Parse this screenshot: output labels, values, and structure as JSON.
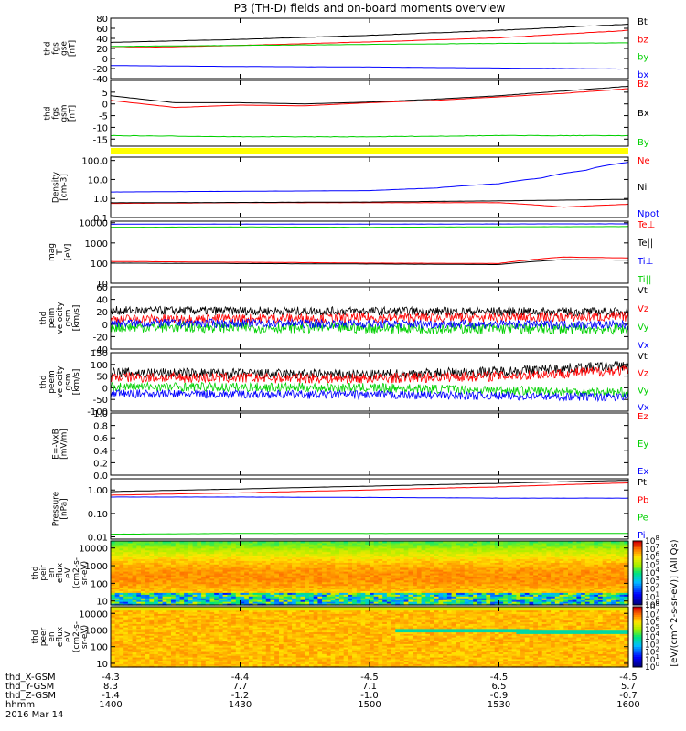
{
  "title": "P3 (TH-D) fields and on-board moments overview",
  "date_label": "2016 Mar 14",
  "chart_data": [
    {
      "id": "fgs_gse",
      "type": "line",
      "ylabel": [
        "thd",
        "fgs",
        "gse",
        "[nT]"
      ],
      "ylim": [
        -40,
        80
      ],
      "yticks": [
        80,
        60,
        40,
        20,
        0,
        -20,
        -40
      ],
      "series": [
        {
          "name": "Bt",
          "color": "#000000",
          "x": [
            1400,
            1430,
            1500,
            1530,
            1600
          ],
          "values": [
            32,
            38,
            46,
            56,
            68
          ]
        },
        {
          "name": "bz",
          "color": "#ff0000",
          "x": [
            1400,
            1430,
            1500,
            1530,
            1600
          ],
          "values": [
            21,
            26,
            33,
            41,
            56
          ]
        },
        {
          "name": "by",
          "color": "#00d000",
          "x": [
            1400,
            1430,
            1500,
            1530,
            1600
          ],
          "values": [
            24,
            26,
            28,
            30,
            31
          ]
        },
        {
          "name": "bx",
          "color": "#0000ff",
          "x": [
            1400,
            1430,
            1500,
            1530,
            1600
          ],
          "values": [
            -14,
            -16,
            -17,
            -19,
            -21
          ]
        }
      ]
    },
    {
      "id": "fgs_gsm",
      "type": "line",
      "ylabel": [
        "thd",
        "fgs",
        "gsm",
        "[nT]"
      ],
      "ylim": [
        -18,
        10
      ],
      "yticks": [
        5,
        0,
        -5,
        -10,
        -15
      ],
      "series": [
        {
          "name": "Bz",
          "color": "#ff0000",
          "x": [
            1400,
            1415,
            1430,
            1445,
            1500,
            1515,
            1530,
            1545,
            1600
          ],
          "values": [
            1.5,
            -1.5,
            -0.5,
            -0.8,
            0.5,
            1.5,
            3,
            4.5,
            6.5
          ]
        },
        {
          "name": "Bx",
          "color": "#000000",
          "x": [
            1400,
            1415,
            1430,
            1445,
            1500,
            1515,
            1530,
            1545,
            1600
          ],
          "values": [
            3.5,
            0.5,
            0.5,
            0,
            0.8,
            2,
            3.5,
            5.5,
            7.5
          ]
        },
        {
          "name": "By",
          "color": "#00d000",
          "x": [
            1400,
            1430,
            1500,
            1530,
            1600
          ],
          "values": [
            -13.5,
            -14,
            -14,
            -13.5,
            -13.5
          ]
        }
      ]
    },
    {
      "id": "density",
      "type": "line",
      "log": true,
      "ylabel": [
        "Density",
        "[cm-3]"
      ],
      "ylim": [
        0.1,
        150
      ],
      "yticks": [
        100.0,
        10.0,
        1.0,
        0.1
      ],
      "tick_text": [
        "100.0",
        "10.0",
        "1.0",
        "0.1"
      ],
      "series": [
        {
          "name": "Ne",
          "color": "#ff0000",
          "x": [
            1400,
            1430,
            1500,
            1530,
            1545,
            1600
          ],
          "values": [
            0.55,
            0.6,
            0.6,
            0.6,
            0.35,
            0.5
          ]
        },
        {
          "name": "Ni",
          "color": "#000000",
          "x": [
            1400,
            1430,
            1500,
            1530,
            1600
          ],
          "values": [
            0.6,
            0.62,
            0.65,
            0.75,
            0.9
          ]
        },
        {
          "name": "Npot",
          "color": "#0000ff",
          "x": [
            1400,
            1430,
            1500,
            1515,
            1530,
            1540,
            1550,
            1600
          ],
          "values": [
            2.2,
            2.4,
            2.6,
            3.5,
            6,
            12,
            30,
            80
          ]
        }
      ]
    },
    {
      "id": "temperature",
      "type": "line",
      "log": true,
      "ylabel": [
        "mag",
        "T",
        "[eV]"
      ],
      "ylim": [
        10,
        12000
      ],
      "yticks": [
        10000,
        1000,
        100,
        10
      ],
      "tick_text": [
        "10000",
        "1000",
        "100",
        "10"
      ],
      "series": [
        {
          "name": "Te⊥",
          "color": "#ff0000",
          "x": [
            1400,
            1430,
            1500,
            1530,
            1545,
            1600
          ],
          "values": [
            120,
            110,
            100,
            95,
            200,
            180
          ]
        },
        {
          "name": "Te||",
          "color": "#000000",
          "x": [
            1400,
            1430,
            1500,
            1530,
            1545,
            1600
          ],
          "values": [
            100,
            95,
            90,
            85,
            150,
            140
          ]
        },
        {
          "name": "Ti⊥",
          "color": "#0000ff",
          "x": [
            1400,
            1430,
            1500,
            1530,
            1600
          ],
          "values": [
            8500,
            8600,
            8600,
            8700,
            8800
          ]
        },
        {
          "name": "Ti||",
          "color": "#00d000",
          "x": [
            1400,
            1430,
            1500,
            1530,
            1600
          ],
          "values": [
            6000,
            6200,
            6000,
            6300,
            6500
          ]
        }
      ]
    },
    {
      "id": "peim_velocity",
      "type": "line",
      "noisy": true,
      "ylabel": [
        "thd",
        "peim",
        "velocity",
        "gsm",
        "[km/s]"
      ],
      "ylim": [
        -40,
        60
      ],
      "yticks": [
        60,
        40,
        20,
        0,
        -20,
        -40
      ],
      "series": [
        {
          "name": "Vt",
          "color": "#000000",
          "x": [
            1400,
            1600
          ],
          "values": [
            22,
            20
          ],
          "noise": 7
        },
        {
          "name": "Vz",
          "color": "#ff0000",
          "x": [
            1400,
            1600
          ],
          "values": [
            8,
            12
          ],
          "noise": 8
        },
        {
          "name": "Vy",
          "color": "#00d000",
          "x": [
            1400,
            1600
          ],
          "values": [
            -4,
            -8
          ],
          "noise": 9
        },
        {
          "name": "Vx",
          "color": "#0000ff",
          "x": [
            1400,
            1600
          ],
          "values": [
            2,
            -1
          ],
          "noise": 7
        }
      ]
    },
    {
      "id": "peem_velocity",
      "type": "line",
      "noisy": true,
      "ylabel": [
        "thd",
        "peem",
        "velocity",
        "gsm",
        "[km/s]"
      ],
      "ylim": [
        -100,
        150
      ],
      "yticks": [
        150,
        100,
        50,
        0,
        -50,
        -100
      ],
      "series": [
        {
          "name": "Vt",
          "color": "#000000",
          "x": [
            1400,
            1500,
            1530,
            1600
          ],
          "values": [
            65,
            55,
            70,
            95
          ],
          "noise": 22
        },
        {
          "name": "Vz",
          "color": "#ff0000",
          "x": [
            1400,
            1500,
            1530,
            1600
          ],
          "values": [
            45,
            40,
            50,
            75
          ],
          "noise": 22
        },
        {
          "name": "Vy",
          "color": "#00d000",
          "x": [
            1400,
            1500,
            1530,
            1600
          ],
          "values": [
            5,
            0,
            -10,
            -20
          ],
          "noise": 20
        },
        {
          "name": "Vx",
          "color": "#0000ff",
          "x": [
            1400,
            1500,
            1530,
            1600
          ],
          "values": [
            -25,
            -30,
            -35,
            -40
          ],
          "noise": 18
        }
      ]
    },
    {
      "id": "efield",
      "type": "line",
      "ylabel": [
        "E=-VxB",
        "[mV/m]"
      ],
      "ylim": [
        0,
        1
      ],
      "yticks": [
        1.0,
        0.8,
        0.6,
        0.4,
        0.2,
        0.0
      ],
      "tick_text": [
        "1.0",
        "0.8",
        "0.6",
        "0.4",
        "0.2",
        "0.0"
      ],
      "series": [
        {
          "name": "Ez",
          "color": "#ff0000",
          "x": [],
          "values": []
        },
        {
          "name": "Ey",
          "color": "#00d000",
          "x": [],
          "values": []
        },
        {
          "name": "Ex",
          "color": "#0000ff",
          "x": [],
          "values": []
        }
      ]
    },
    {
      "id": "pressure",
      "type": "line",
      "log": true,
      "ylabel": [
        "Pressure",
        "[nPa]"
      ],
      "ylim": [
        0.008,
        3
      ],
      "yticks": [
        1.0,
        0.1,
        0.01
      ],
      "tick_text": [
        "1.00",
        "0.10",
        "0.01"
      ],
      "series": [
        {
          "name": "Pt",
          "color": "#000000",
          "x": [
            1400,
            1430,
            1500,
            1530,
            1600
          ],
          "values": [
            0.85,
            1.1,
            1.45,
            1.9,
            2.6
          ]
        },
        {
          "name": "Pb",
          "color": "#ff0000",
          "x": [
            1400,
            1430,
            1500,
            1530,
            1600
          ],
          "values": [
            0.6,
            0.75,
            1.0,
            1.35,
            2.0
          ]
        },
        {
          "name": "Pe",
          "color": "#00d000",
          "x": [
            1400,
            1430,
            1500,
            1530,
            1600
          ],
          "values": [
            0.013,
            0.014,
            0.014,
            0.014,
            0.014
          ]
        },
        {
          "name": "Pi",
          "color": "#0000ff",
          "x": [
            1400,
            1430,
            1500,
            1530,
            1600
          ],
          "values": [
            0.5,
            0.5,
            0.48,
            0.45,
            0.45
          ]
        }
      ]
    },
    {
      "id": "peir_spec",
      "type": "heatmap",
      "log": true,
      "ylabel": [
        "thd",
        "peir",
        "en",
        "eflux",
        "eV",
        "(cm2-s-",
        "sr-eV)"
      ],
      "ylim": [
        6,
        25000
      ],
      "yticks": [
        10000,
        1000,
        100,
        10
      ],
      "tick_text": [
        "10000",
        "1000",
        "100",
        "10"
      ],
      "colorbar": {
        "label": "[eV/(cm^2-s-sr-eV)] (All Qs)",
        "ticks": [
          "10^8",
          "10^7",
          "10^6",
          "10^5",
          "10^4",
          "10^3",
          "10^2",
          "10^1",
          "10^0"
        ]
      }
    },
    {
      "id": "peer_spec",
      "type": "heatmap",
      "log": true,
      "ylabel": [
        "thd",
        "peer",
        "en",
        "eflux",
        "eV",
        "(cm2-s-",
        "sr-eV)"
      ],
      "ylim": [
        6,
        25000
      ],
      "yticks": [
        10000,
        1000,
        100,
        10
      ],
      "tick_text": [
        "10000",
        "1000",
        "100",
        "10"
      ],
      "colorbar": {
        "label": "[eV/(cm^2-s-sr-eV)] (All Qs)",
        "ticks": [
          "10^8",
          "10^7",
          "10^6",
          "10^5",
          "10^4",
          "10^3",
          "10^2",
          "10^1",
          "10^0"
        ]
      }
    }
  ],
  "time_axis": {
    "ticks": [
      1400,
      1430,
      1500,
      1530,
      1600
    ],
    "rows": [
      {
        "label": "thd_X-GSM",
        "values": [
          "-4.3",
          "-4.4",
          "-4.5",
          "-4.5",
          "-4.5"
        ]
      },
      {
        "label": "thd_Y-GSM",
        "values": [
          "8.3",
          "7.7",
          "7.1",
          "6.5",
          "5.7"
        ]
      },
      {
        "label": "thd_Z-GSM",
        "values": [
          "-1.4",
          "-1.2",
          "-1.0",
          "-0.9",
          "-0.7"
        ]
      },
      {
        "label": "hhmm",
        "values": [
          "1400",
          "1430",
          "1500",
          "1530",
          "1600"
        ]
      }
    ]
  },
  "status_bar": {
    "color": "#ffff00"
  },
  "colorbar_label": "[eV/(cm^2-s-sr-eV)] (All Qs)"
}
